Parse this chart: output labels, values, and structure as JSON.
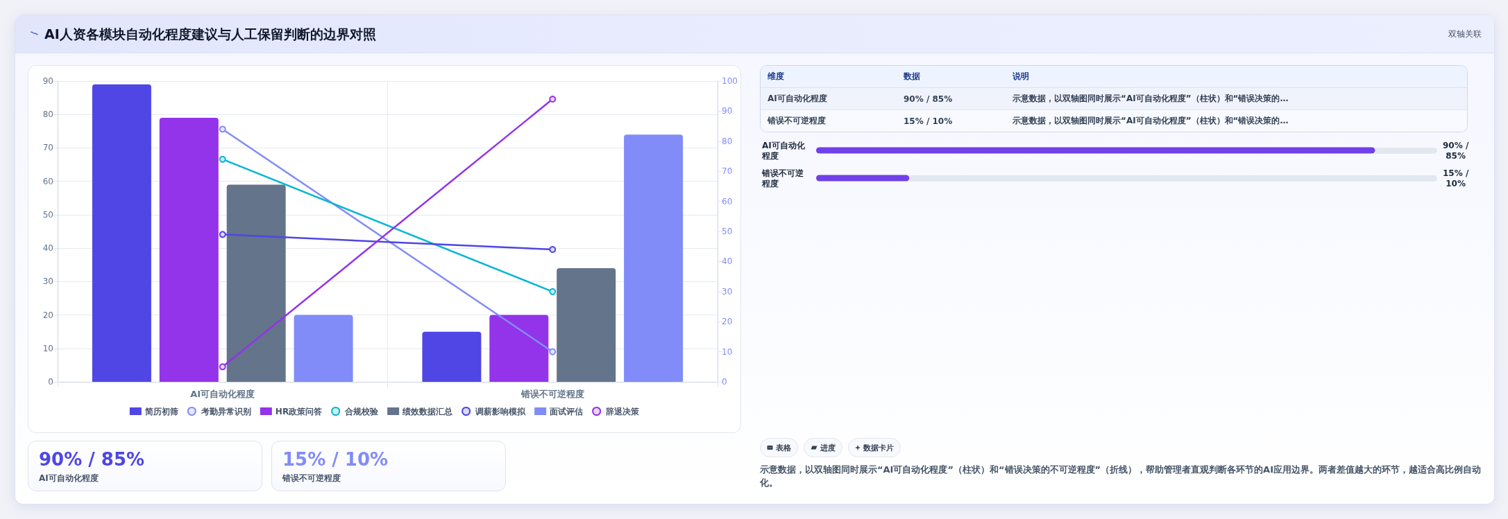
{
  "chart_data": [
    {
      "type": "other",
      "title": "AI人资各模块自动化程度建议与人工保留判断的边界对照",
      "subtitle": "双轴关联"
    },
    {
      "type": "bar",
      "categories": [
        "AI可自动化程度",
        "错误不可逆程度"
      ],
      "series": [
        {
          "name": "简历初筛",
          "type": "bar",
          "color": "#4f46e5",
          "values": [
            89,
            15
          ]
        },
        {
          "name": "考勤异常识别",
          "type": "line",
          "axis": "y2",
          "color": "#818cf8",
          "values": [
            84,
            10
          ]
        },
        {
          "name": "HR政策问答",
          "type": "bar",
          "color": "#9333ea",
          "values": [
            79,
            20
          ]
        },
        {
          "name": "合规校验",
          "type": "line",
          "axis": "y2",
          "color": "#06b6d4",
          "values": [
            74,
            30
          ]
        },
        {
          "name": "绩效数据汇总",
          "type": "bar",
          "color": "#64748b",
          "values": [
            59,
            34
          ]
        },
        {
          "name": "调薪影响模拟",
          "type": "line",
          "axis": "y2",
          "color": "#4f46e5",
          "values": [
            49,
            44
          ]
        },
        {
          "name": "面试评估",
          "type": "bar",
          "color": "#818cf8",
          "values": [
            20,
            74
          ]
        },
        {
          "name": "辞退决策",
          "type": "line",
          "axis": "y2",
          "color": "#9333ea",
          "values": [
            5,
            94
          ]
        }
      ],
      "ylim": [
        0,
        90
      ],
      "yticks": [
        0,
        10,
        20,
        30,
        40,
        50,
        60,
        70,
        80,
        90
      ],
      "y2lim": [
        0,
        100
      ],
      "y2ticks": [
        0,
        10,
        20,
        30,
        40,
        50,
        60,
        70,
        80,
        90,
        100
      ],
      "grid": true,
      "legend": "bottom",
      "marker": "circle",
      "line_style": "solid"
    },
    {
      "type": "other",
      "categories": [
        "维度",
        "数据",
        "说明"
      ],
      "annotations": [
        "AI可自动化程度",
        "90% / 85%",
        "示意数据，以双轴图同时展示“AI可自动化程度”（柱状）和“错误决策的…",
        "错误不可逆程度",
        "15% / 10%",
        "示意数据，以双轴图同时展示“AI可自动化程度”（柱状）和“错误决策的…"
      ]
    },
    {
      "type": "bar",
      "orientation": "horizontal",
      "categories": [
        "AI可自动化程度",
        "错误不可逆程度"
      ],
      "values": [
        90,
        15
      ],
      "value_labels": [
        "90% / 85%",
        "15% / 10%"
      ],
      "color": "#7140e8",
      "xlim": [
        0,
        100
      ],
      "tick_labels": "y"
    },
    {
      "type": "other",
      "categories": [
        "AI可自动化程度",
        "错误不可逆程度"
      ],
      "value_labels": [
        "90% / 85%",
        "15% / 10%"
      ]
    },
    {
      "type": "other",
      "categories": [
        "表格",
        "进度",
        "数据卡片"
      ],
      "annotations": [
        "示意数据，以双轴图同时展示“AI可自动化程度”（柱状）和“错误决策的不可逆程度”（折线），帮助管理者直观判断各环节的AI应用边界。两者差值越大的环节，越适合高比例自动化。"
      ]
    }
  ]
}
